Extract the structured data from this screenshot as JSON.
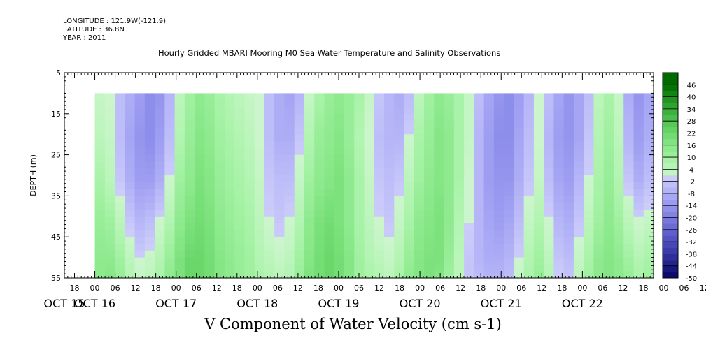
{
  "header": {
    "longitude": "LONGITUDE : 121.9W(-121.9)",
    "latitude": "LATITUDE : 36.8N",
    "year": "YEAR : 2011"
  },
  "chart_data": {
    "type": "heatmap",
    "title": "Hourly Gridded MBARI Mooring M0 Sea Water Temperature and Salinity Observations",
    "xlabel": "V Component of Water Velocity (cm s-1)",
    "ylabel": "DEPTH (m)",
    "ylim": [
      55,
      5
    ],
    "yticks": [
      "5",
      "15",
      "25",
      "35",
      "45",
      "55"
    ],
    "xlim": [
      "2011-10-15T15:00",
      "2011-10-22T21:00"
    ],
    "hour_ticks": [
      "18",
      "00",
      "06",
      "12",
      "18",
      "00",
      "06",
      "12",
      "18",
      "00",
      "06",
      "12",
      "18",
      "00",
      "06",
      "12",
      "18",
      "00",
      "06",
      "12",
      "18",
      "00",
      "06",
      "12",
      "18",
      "00",
      "06",
      "12",
      "18",
      "00",
      "06",
      "12"
    ],
    "date_labels": [
      "OCT 15",
      "OCT 16",
      "OCT 17",
      "OCT 18",
      "OCT 19",
      "OCT 20",
      "OCT 21",
      "OCT 22"
    ],
    "data_depth_range": [
      10,
      55
    ],
    "data_start": "2011-10-16T00:00",
    "colorbar": {
      "labels": [
        "46",
        "40",
        "34",
        "28",
        "22",
        "16",
        "10",
        "4",
        "-2",
        "-8",
        "-14",
        "-20",
        "-26",
        "-32",
        "-38",
        "-44",
        "-50"
      ],
      "range": [
        -50,
        52
      ]
    },
    "series": [
      {
        "depth": 10,
        "values": [
          2,
          0,
          -4,
          -8,
          -12,
          -16,
          -14,
          -6,
          4,
          10,
          14,
          12,
          8,
          6,
          4,
          2,
          0,
          -4,
          -8,
          -10,
          -6,
          2,
          8,
          12,
          14,
          12,
          8,
          2,
          -2,
          -6,
          -8,
          -4,
          4,
          10,
          14,
          12,
          8,
          2,
          -4,
          -10,
          -14,
          -16,
          -12,
          -6,
          0,
          -4,
          -10,
          -14,
          -10,
          -4,
          4,
          8,
          2,
          -8,
          -14,
          -10
        ]
      },
      {
        "depth": 20,
        "values": [
          4,
          2,
          -4,
          -10,
          -14,
          -16,
          -12,
          -4,
          6,
          12,
          16,
          14,
          10,
          8,
          6,
          4,
          0,
          -4,
          -8,
          -8,
          -2,
          6,
          12,
          14,
          16,
          12,
          6,
          0,
          -4,
          -6,
          -6,
          0,
          8,
          12,
          16,
          14,
          8,
          2,
          -6,
          -12,
          -16,
          -16,
          -10,
          -4,
          0,
          -6,
          -12,
          -14,
          -10,
          -2,
          6,
          10,
          4,
          -6,
          -12,
          -8
        ]
      },
      {
        "depth": 30,
        "values": [
          8,
          4,
          -2,
          -8,
          -12,
          -12,
          -8,
          0,
          10,
          14,
          18,
          16,
          12,
          10,
          8,
          6,
          2,
          -2,
          -4,
          -4,
          2,
          10,
          14,
          16,
          18,
          14,
          8,
          2,
          -2,
          -4,
          -2,
          4,
          10,
          14,
          16,
          14,
          8,
          0,
          -6,
          -12,
          -14,
          -14,
          -8,
          -2,
          2,
          -4,
          -10,
          -12,
          -6,
          0,
          8,
          12,
          6,
          -2,
          -8,
          -4
        ]
      },
      {
        "depth": 40,
        "values": [
          12,
          10,
          4,
          -2,
          -6,
          -4,
          0,
          6,
          14,
          18,
          20,
          18,
          14,
          12,
          10,
          8,
          4,
          0,
          -2,
          0,
          6,
          14,
          18,
          20,
          18,
          14,
          8,
          4,
          0,
          -2,
          2,
          8,
          14,
          16,
          18,
          14,
          6,
          0,
          -6,
          -10,
          -12,
          -10,
          -4,
          2,
          6,
          0,
          -6,
          -8,
          -2,
          4,
          10,
          14,
          10,
          4,
          0,
          2
        ]
      },
      {
        "depth": 50,
        "values": [
          14,
          14,
          10,
          4,
          0,
          2,
          6,
          12,
          18,
          22,
          22,
          20,
          16,
          14,
          12,
          10,
          6,
          4,
          2,
          4,
          10,
          16,
          20,
          22,
          20,
          16,
          10,
          6,
          4,
          2,
          6,
          12,
          16,
          18,
          18,
          12,
          4,
          -2,
          -6,
          -8,
          -8,
          -6,
          0,
          6,
          10,
          4,
          -2,
          -4,
          2,
          8,
          14,
          16,
          14,
          10,
          6,
          8
        ]
      },
      {
        "depth": 55,
        "values": [
          14,
          16,
          12,
          6,
          2,
          4,
          8,
          14,
          18,
          22,
          22,
          20,
          16,
          14,
          12,
          10,
          8,
          6,
          4,
          6,
          12,
          18,
          20,
          22,
          20,
          16,
          10,
          8,
          6,
          4,
          8,
          14,
          16,
          18,
          16,
          10,
          4,
          -2,
          -4,
          -6,
          -6,
          -4,
          2,
          8,
          12,
          6,
          0,
          -2,
          4,
          10,
          14,
          16,
          14,
          12,
          8,
          10
        ]
      }
    ]
  }
}
